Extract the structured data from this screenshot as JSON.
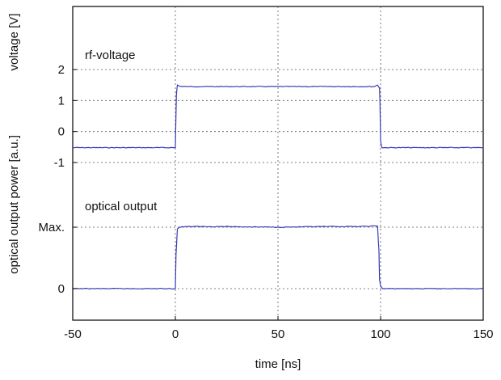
{
  "chart_data": {
    "type": "line",
    "xlabel": "time [ns]",
    "x_ticks": [
      -50,
      0,
      50,
      100,
      150
    ],
    "xlim": [
      -50,
      150
    ],
    "panels": [
      {
        "ylabel": "voltage [V]",
        "ylim": [
          -2,
          3.0
        ],
        "y_ticks": [
          {
            "value": 2,
            "label": "2"
          },
          {
            "value": 1,
            "label": "1"
          },
          {
            "value": 0,
            "label": "0"
          },
          {
            "value": -1,
            "label": "-1"
          }
        ],
        "series": [
          {
            "name": "rf-voltage",
            "color": "#3a3ab8",
            "x": [
              -50,
              0,
              0.2,
              0.5,
              1,
              2,
              3,
              10,
              30,
              50,
              70,
              90,
              97,
              98.5,
              99.5,
              99.7,
              100,
              100.5,
              101,
              105,
              120,
              150
            ],
            "y": [
              -0.52,
              -0.52,
              0.2,
              1.2,
              1.5,
              1.47,
              1.45,
              1.45,
              1.45,
              1.45,
              1.45,
              1.45,
              1.45,
              1.5,
              1.4,
              1.0,
              -0.3,
              -0.5,
              -0.52,
              -0.52,
              -0.52,
              -0.52
            ]
          }
        ],
        "annotation": "rf-voltage"
      },
      {
        "ylabel": "optical output power [a.u.]",
        "ylim": [
          -0.2,
          1.25
        ],
        "y_ticks": [
          {
            "value": 1,
            "label": "Max."
          },
          {
            "value": 0,
            "label": "0"
          }
        ],
        "series": [
          {
            "name": "optical output",
            "color": "#3a3ab8",
            "x": [
              -50,
              0,
              0.3,
              1,
              2,
              5,
              10,
              25,
              50,
              75,
              90,
              97,
              98.5,
              99.2,
              99.5,
              100,
              100.5,
              101,
              110,
              150
            ],
            "y": [
              0.0,
              0.0,
              0.55,
              0.97,
              1.0,
              1.01,
              1.01,
              1.01,
              1.0,
              1.01,
              1.01,
              1.02,
              1.02,
              0.6,
              0.15,
              0.04,
              0.02,
              0.0,
              0.0,
              0.0
            ]
          }
        ],
        "annotation": "optical output"
      }
    ],
    "grid": true
  }
}
